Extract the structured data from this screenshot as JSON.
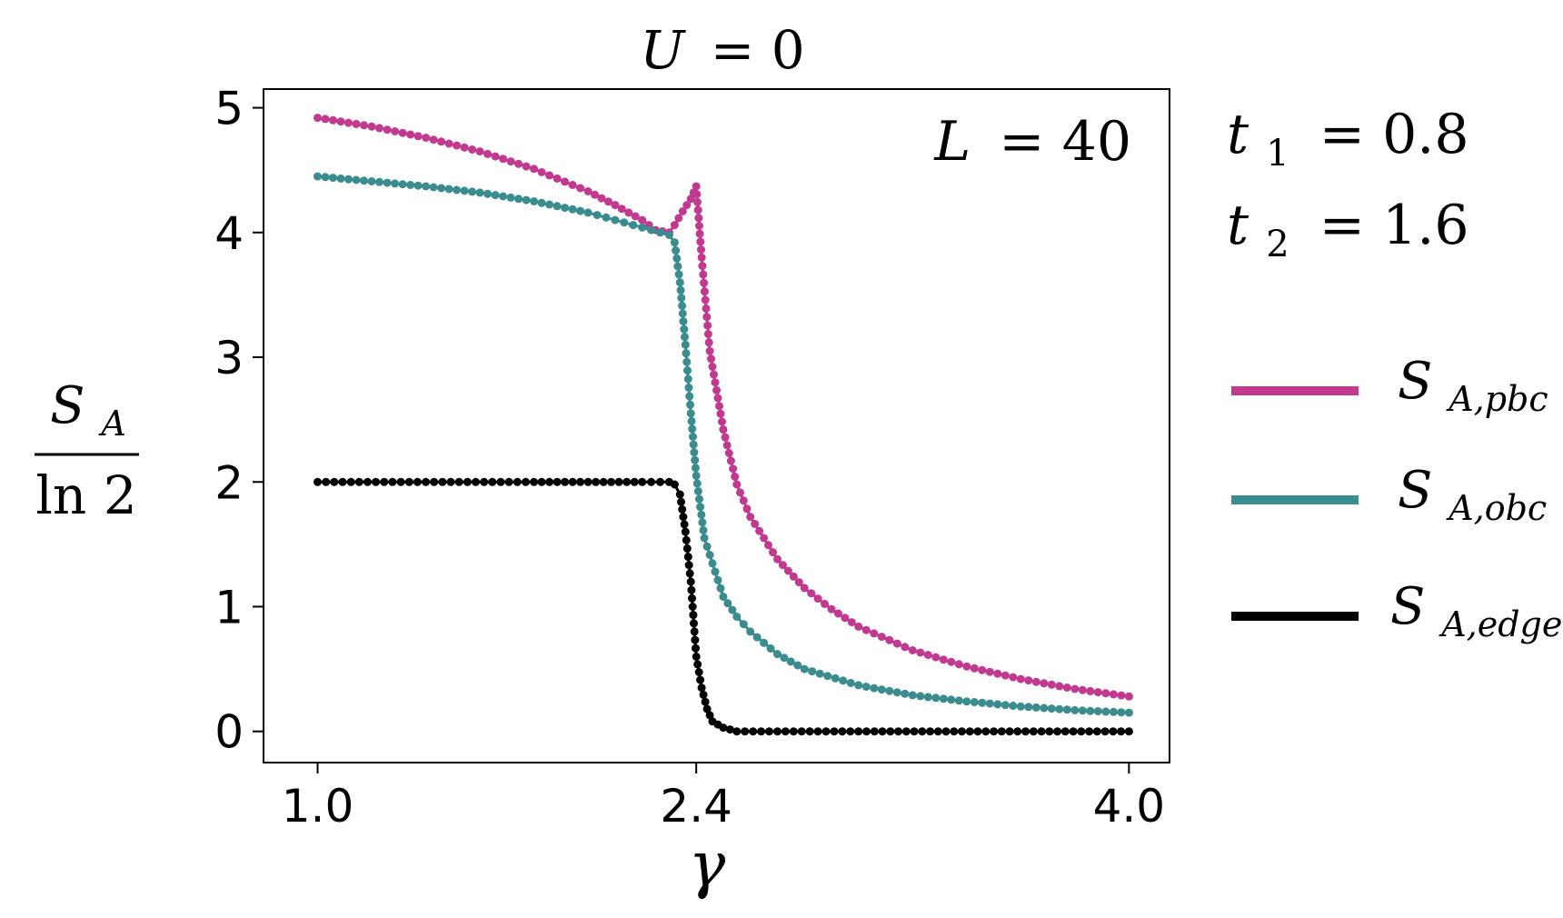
{
  "chart_data": {
    "type": "line",
    "title_lhs": "U",
    "title_rhs": "= 0",
    "xlabel": "γ",
    "ylabel": {
      "numerator_main": "S",
      "numerator_sub": "A",
      "denominator": "ln 2"
    },
    "xlim": [
      0.8,
      4.15
    ],
    "ylim": [
      -0.25,
      5.15
    ],
    "xticks": [
      1.0,
      2.4,
      4.0
    ],
    "xtick_labels": [
      "1.0",
      "2.4",
      "4.0"
    ],
    "yticks": [
      0,
      1,
      2,
      3,
      4,
      5
    ],
    "ytick_labels": [
      "0",
      "1",
      "2",
      "3",
      "4",
      "5"
    ],
    "grid": false,
    "legend_position": "right",
    "annotation": {
      "lhs": "L",
      "rhs": "= 40"
    },
    "params": [
      {
        "lhs": "t",
        "sub": "1",
        "rhs": "= 0.8"
      },
      {
        "lhs": "t",
        "sub": "2",
        "rhs": "= 1.6"
      }
    ],
    "series": [
      {
        "name": "S_A,pbc",
        "legend_main": "S",
        "legend_sub": "A,pbc",
        "color": "#C13A90",
        "points": [
          [
            1.0,
            4.92
          ],
          [
            1.2,
            4.85
          ],
          [
            1.4,
            4.76
          ],
          [
            1.6,
            4.65
          ],
          [
            1.8,
            4.51
          ],
          [
            2.0,
            4.33
          ],
          [
            2.1,
            4.22
          ],
          [
            2.2,
            4.1
          ],
          [
            2.25,
            4.02
          ],
          [
            2.3,
            4.0
          ],
          [
            2.32,
            4.06
          ],
          [
            2.35,
            4.17
          ],
          [
            2.38,
            4.27
          ],
          [
            2.4,
            4.37
          ],
          [
            2.42,
            3.8
          ],
          [
            2.45,
            3.05
          ],
          [
            2.5,
            2.42
          ],
          [
            2.55,
            1.98
          ],
          [
            2.6,
            1.72
          ],
          [
            2.7,
            1.38
          ],
          [
            2.8,
            1.15
          ],
          [
            2.9,
            0.98
          ],
          [
            3.0,
            0.84
          ],
          [
            3.2,
            0.65
          ],
          [
            3.4,
            0.52
          ],
          [
            3.6,
            0.42
          ],
          [
            3.8,
            0.34
          ],
          [
            4.0,
            0.28
          ]
        ]
      },
      {
        "name": "S_A,obc",
        "legend_main": "S",
        "legend_sub": "A,obc",
        "color": "#3A8C8E",
        "points": [
          [
            1.0,
            4.45
          ],
          [
            1.2,
            4.41
          ],
          [
            1.4,
            4.37
          ],
          [
            1.6,
            4.32
          ],
          [
            1.8,
            4.25
          ],
          [
            2.0,
            4.16
          ],
          [
            2.1,
            4.1
          ],
          [
            2.2,
            4.04
          ],
          [
            2.3,
            3.98
          ],
          [
            2.32,
            3.92
          ],
          [
            2.34,
            3.6
          ],
          [
            2.36,
            3.1
          ],
          [
            2.38,
            2.55
          ],
          [
            2.4,
            2.05
          ],
          [
            2.43,
            1.55
          ],
          [
            2.47,
            1.28
          ],
          [
            2.5,
            1.08
          ],
          [
            2.55,
            0.92
          ],
          [
            2.6,
            0.8
          ],
          [
            2.7,
            0.62
          ],
          [
            2.8,
            0.5
          ],
          [
            3.0,
            0.37
          ],
          [
            3.2,
            0.29
          ],
          [
            3.4,
            0.24
          ],
          [
            3.6,
            0.2
          ],
          [
            3.8,
            0.17
          ],
          [
            4.0,
            0.15
          ]
        ]
      },
      {
        "name": "S_A,edge",
        "legend_main": "S",
        "legend_sub": "A,edge",
        "color": "#000000",
        "points": [
          [
            1.0,
            2.0
          ],
          [
            1.4,
            2.0
          ],
          [
            1.8,
            2.0
          ],
          [
            2.0,
            2.0
          ],
          [
            2.2,
            2.0
          ],
          [
            2.3,
            2.0
          ],
          [
            2.32,
            1.98
          ],
          [
            2.34,
            1.9
          ],
          [
            2.36,
            1.6
          ],
          [
            2.38,
            1.2
          ],
          [
            2.4,
            0.6
          ],
          [
            2.42,
            0.35
          ],
          [
            2.44,
            0.18
          ],
          [
            2.46,
            0.08
          ],
          [
            2.5,
            0.03
          ],
          [
            2.55,
            0.0
          ],
          [
            2.7,
            0.0
          ],
          [
            3.0,
            0.0
          ],
          [
            3.5,
            0.0
          ],
          [
            4.0,
            0.0
          ]
        ]
      }
    ]
  }
}
